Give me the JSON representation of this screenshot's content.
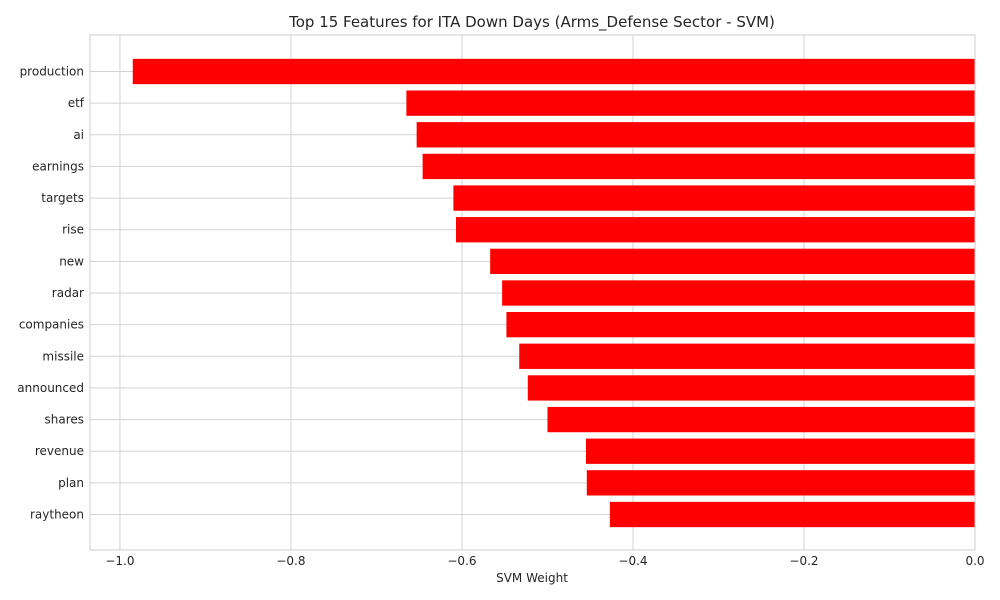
{
  "chart_data": {
    "type": "bar",
    "orientation": "horizontal",
    "title": "Top 15 Features for ITA Down Days (Arms_Defense Sector - SVM)",
    "xlabel": "SVM Weight",
    "ylabel": "",
    "xlim": [
      -1.035,
      0.0
    ],
    "xticks": [
      -1.0,
      -0.8,
      -0.6,
      -0.4,
      -0.2,
      0.0
    ],
    "xtick_labels": [
      "−1.0",
      "−0.8",
      "−0.6",
      "−0.4",
      "−0.2",
      "0.0"
    ],
    "grid": true,
    "bar_color": "#ff0000",
    "categories": [
      "production",
      "etf",
      "ai",
      "earnings",
      "targets",
      "rise",
      "new",
      "radar",
      "companies",
      "missile",
      "announced",
      "shares",
      "revenue",
      "plan",
      "raytheon"
    ],
    "values": [
      -0.985,
      -0.665,
      -0.653,
      -0.646,
      -0.61,
      -0.607,
      -0.567,
      -0.553,
      -0.548,
      -0.533,
      -0.523,
      -0.5,
      -0.455,
      -0.454,
      -0.427
    ]
  }
}
